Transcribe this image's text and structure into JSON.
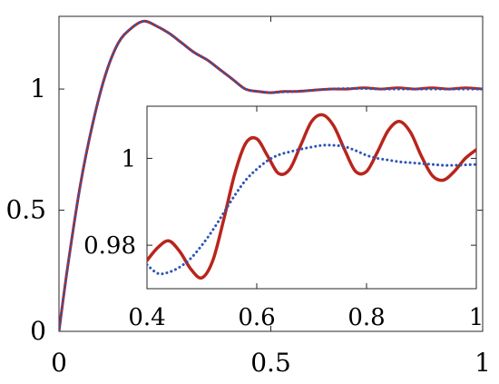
{
  "chart_data": [
    {
      "name": "main",
      "type": "line",
      "title": "",
      "xlabel": "",
      "ylabel": "",
      "xlim": [
        0,
        1
      ],
      "ylim": [
        0,
        1.3
      ],
      "x_ticks": [
        {
          "value": 0,
          "label": "0"
        },
        {
          "value": 0.5,
          "label": "0.5"
        },
        {
          "value": 1,
          "label": "1"
        }
      ],
      "y_ticks": [
        {
          "value": 0,
          "label": "0"
        },
        {
          "value": 0.5,
          "label": "0.5"
        },
        {
          "value": 1,
          "label": "1"
        }
      ],
      "grid": false,
      "legend": "none",
      "series": [
        {
          "color": "#b8251c",
          "style": "solid",
          "x": [
            0,
            0.02,
            0.05,
            0.08,
            0.11,
            0.14,
            0.17,
            0.2,
            0.23,
            0.26,
            0.29,
            0.32,
            0.35,
            0.38,
            0.41,
            0.44,
            0.47,
            0.5,
            0.53,
            0.56,
            0.6,
            0.64,
            0.68,
            0.72,
            0.76,
            0.8,
            0.84,
            0.88,
            0.92,
            0.96,
            1.0
          ],
          "y": [
            0.0,
            0.26,
            0.6,
            0.86,
            1.06,
            1.19,
            1.25,
            1.28,
            1.26,
            1.23,
            1.19,
            1.15,
            1.12,
            1.08,
            1.04,
            1.0,
            0.99,
            0.985,
            0.99,
            0.99,
            0.995,
            1.0,
            1.0,
            1.005,
            1.0,
            1.005,
            1.0,
            1.005,
            1.0,
            1.005,
            1.0
          ]
        },
        {
          "color": "#2f55b4",
          "style": "dotted",
          "x": [
            0,
            0.02,
            0.05,
            0.08,
            0.11,
            0.14,
            0.17,
            0.2,
            0.23,
            0.26,
            0.29,
            0.32,
            0.35,
            0.38,
            0.41,
            0.44,
            0.47,
            0.5,
            0.53,
            0.56,
            0.6,
            0.64,
            0.68,
            0.72,
            0.76,
            0.8,
            0.84,
            0.88,
            0.92,
            0.96,
            1.0
          ],
          "y": [
            0.0,
            0.26,
            0.6,
            0.86,
            1.06,
            1.19,
            1.25,
            1.28,
            1.26,
            1.23,
            1.19,
            1.15,
            1.12,
            1.08,
            1.04,
            1.0,
            0.99,
            0.985,
            0.988,
            0.99,
            0.995,
            1.0,
            1.002,
            1.002,
            1.0,
            1.0,
            1.0,
            1.0,
            1.0,
            1.0,
            1.0
          ]
        }
      ]
    },
    {
      "name": "inset",
      "type": "line",
      "title": "",
      "xlabel": "",
      "ylabel": "",
      "xlim": [
        0.4,
        1
      ],
      "ylim": [
        0.97,
        1.012
      ],
      "x_ticks": [
        {
          "value": 0.4,
          "label": "0.4"
        },
        {
          "value": 0.6,
          "label": "0.6"
        },
        {
          "value": 0.8,
          "label": "0.8"
        },
        {
          "value": 1,
          "label": "1"
        }
      ],
      "y_ticks": [
        {
          "value": 0.98,
          "label": "0.98"
        },
        {
          "value": 1,
          "label": "1"
        }
      ],
      "grid": false,
      "legend": "none",
      "series": [
        {
          "color": "#b8251c",
          "style": "solid",
          "x": [
            0.4,
            0.42,
            0.44,
            0.46,
            0.48,
            0.5,
            0.52,
            0.54,
            0.56,
            0.58,
            0.6,
            0.62,
            0.64,
            0.66,
            0.68,
            0.7,
            0.72,
            0.74,
            0.76,
            0.78,
            0.8,
            0.82,
            0.84,
            0.86,
            0.88,
            0.9,
            0.92,
            0.94,
            0.96,
            0.98,
            1.0
          ],
          "y": [
            0.9765,
            0.9795,
            0.981,
            0.9785,
            0.9745,
            0.9725,
            0.9765,
            0.986,
            0.9965,
            1.0035,
            1.0045,
            1.0005,
            0.9965,
            0.9975,
            1.003,
            1.0085,
            1.01,
            1.0075,
            1.002,
            0.997,
            0.997,
            1.0015,
            1.0065,
            1.0085,
            1.006,
            1.0005,
            0.996,
            0.995,
            0.997,
            1.0,
            1.002
          ]
        },
        {
          "color": "#2f55b4",
          "style": "dotted",
          "x": [
            0.4,
            0.42,
            0.44,
            0.46,
            0.48,
            0.5,
            0.52,
            0.54,
            0.56,
            0.58,
            0.6,
            0.62,
            0.64,
            0.66,
            0.68,
            0.7,
            0.72,
            0.74,
            0.76,
            0.78,
            0.8,
            0.82,
            0.84,
            0.86,
            0.88,
            0.9,
            0.92,
            0.94,
            0.96,
            0.98,
            1.0
          ],
          "y": [
            0.9755,
            0.9735,
            0.9738,
            0.975,
            0.977,
            0.98,
            0.9835,
            0.9875,
            0.9915,
            0.995,
            0.9975,
            0.9995,
            1.0008,
            1.0015,
            1.0021,
            1.0026,
            1.003,
            1.003,
            1.0027,
            1.0018,
            1.0007,
            1.0,
            0.9996,
            0.9992,
            0.999,
            0.9988,
            0.9986,
            0.9984,
            0.9984,
            0.9985,
            0.9986
          ]
        }
      ]
    }
  ]
}
